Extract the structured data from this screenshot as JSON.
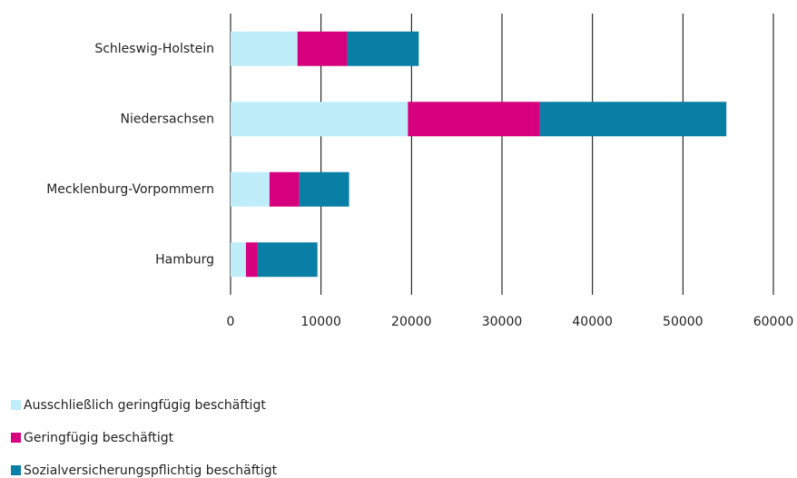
{
  "chart_data": {
    "type": "stacked-barh",
    "categories": [
      "Schleswig-Holstein",
      "Niedersachsen",
      "Mecklenburg-Vorpommern",
      "Hamburg"
    ],
    "series": [
      {
        "name": "Ausschließlich geringfügig beschäftigt",
        "color": "#bfeefa",
        "values": [
          7400,
          19600,
          4300,
          1700
        ]
      },
      {
        "name": "Geringfügig beschäftigt",
        "color": "#d6007e",
        "values": [
          5500,
          14600,
          3300,
          1300
        ]
      },
      {
        "name": "Sozialversicherungspflichtig beschäftigt",
        "color": "#0a7fa5",
        "values": [
          7900,
          20600,
          5500,
          6600
        ]
      }
    ],
    "xlim": [
      0,
      60000
    ],
    "xticks": [
      0,
      10000,
      20000,
      30000,
      40000,
      50000,
      60000
    ],
    "grid": true
  }
}
